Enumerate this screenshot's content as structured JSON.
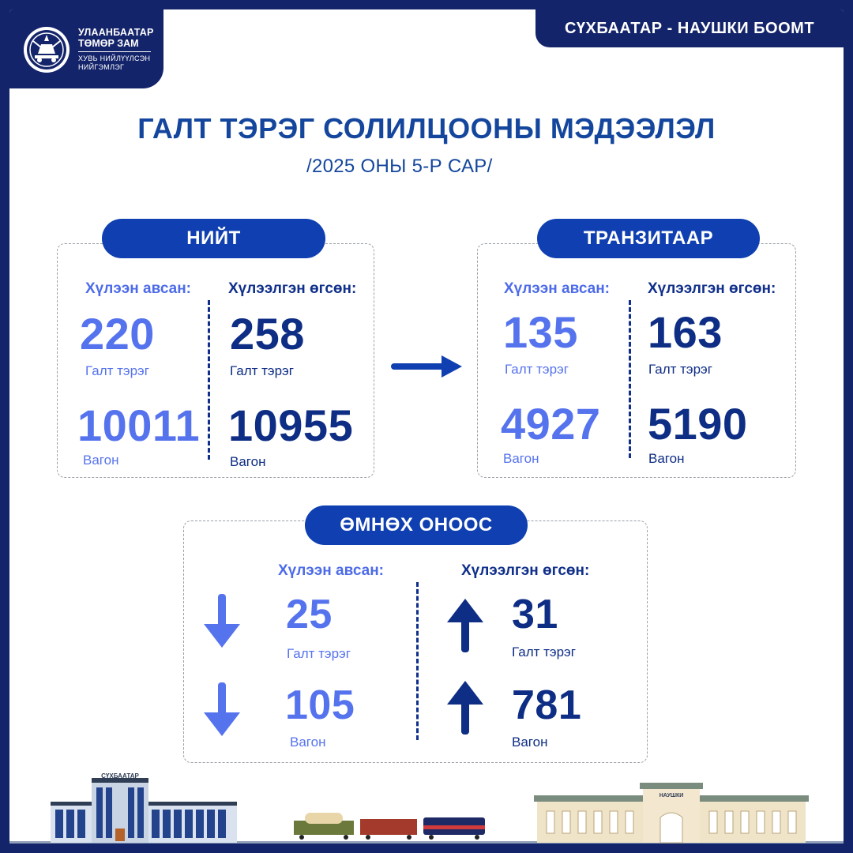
{
  "logo": {
    "line1": "УЛААНБААТАР",
    "line2": "ТӨМӨР ЗАМ",
    "line3": "ХУВЬ НИЙЛҮҮЛСЭН",
    "line4": "НИЙГЭМЛЭГ"
  },
  "header_tab": "СҮХБААТАР - НАУШКИ БООМТ",
  "title": "ГАЛТ ТЭРЭГ СОЛИЛЦООНЫ МЭДЭЭЛЭЛ",
  "subtitle": "/2025 ОНЫ 5-Р САР/",
  "total": {
    "label": "НИЙТ",
    "received_label": "Хүлээн авсан:",
    "sent_label": "Хүлээлгэн өгсөн:",
    "received_trains": "220",
    "sent_trains": "258",
    "received_wagons": "10011",
    "sent_wagons": "10955",
    "train_unit": "Галт тэрэг",
    "wagon_unit": "Вагон"
  },
  "transit": {
    "label": "ТРАНЗИТААР",
    "received_label": "Хүлээн авсан:",
    "sent_label": "Хүлээлгэн өгсөн:",
    "received_trains": "135",
    "sent_trains": "163",
    "received_wagons": "4927",
    "sent_wagons": "5190",
    "train_unit": "Галт тэрэг",
    "wagon_unit": "Вагон"
  },
  "previous_year": {
    "label": "ӨМНӨХ ОНООС",
    "received_label": "Хүлээн авсан:",
    "sent_label": "Хүлээлгэн өгсөн:",
    "received_trains": "25",
    "received_wagons": "105",
    "sent_trains": "31",
    "sent_wagons": "781",
    "train_unit": "Галт тэрэг",
    "wagon_unit": "Вагон"
  },
  "scene": {
    "left_building_sign": "СҮХБААТАР",
    "right_building_sign": "НАУШКИ"
  },
  "colors": {
    "navy": "#14246a",
    "royal": "#0f3fb0",
    "light_blue": "#5673ee",
    "dark_blue": "#0e2d84"
  }
}
